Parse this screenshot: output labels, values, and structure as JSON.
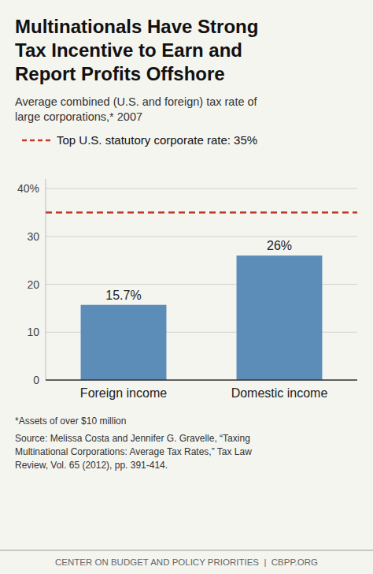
{
  "chart_data": {
    "type": "bar",
    "title": "Multinationals Have Strong\nTax Incentive to Earn and\nReport Profits Offshore",
    "subtitle": "Average combined (U.S. and foreign) tax rate of\nlarge corporations,* 2007",
    "categories": [
      "Foreign income",
      "Domestic income"
    ],
    "values": [
      15.7,
      26.0
    ],
    "value_labels": [
      "15.7%",
      "26%"
    ],
    "data_labels": true,
    "color": "#5b8db8",
    "ylim": [
      0,
      42
    ],
    "yticks": [
      0,
      10,
      20,
      30,
      {
        "value": 40,
        "label": "40%"
      }
    ],
    "grid": true,
    "annotations": [
      {
        "value": 35,
        "label": "Top U.S. statutory corporate rate: 35%",
        "color": "#c0392b",
        "line_style": "dashed"
      }
    ],
    "notes": [
      "*Assets of over $10 million",
      "Source: Melissa Costa and Jennifer G. Gravelle, “Taxing\nMultinational Corporations: Average Tax Rates,” Tax Law\nReview, Vol. 65 (2012), pp. 391-414."
    ],
    "footer": "CENTER ON BUDGET AND POLICY PRIORITIES  |  CBPP.ORG",
    "background": "#f5f5f0"
  }
}
